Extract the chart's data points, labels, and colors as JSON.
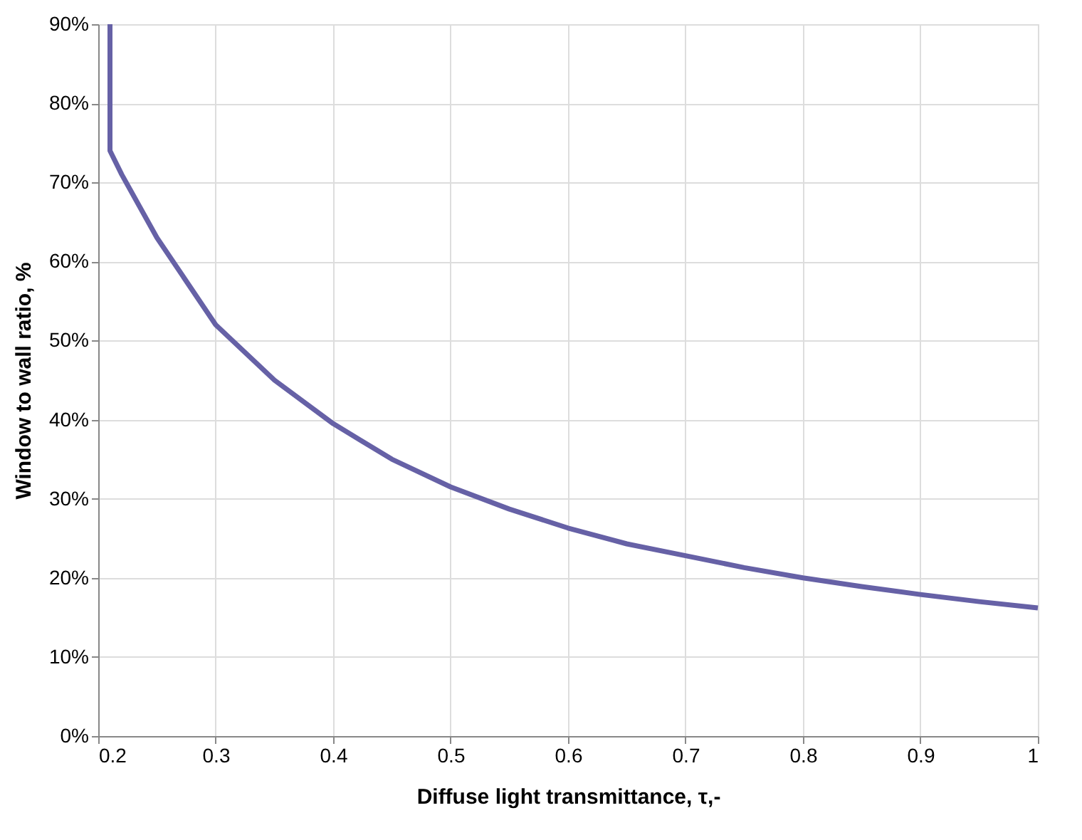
{
  "chart_data": {
    "type": "line",
    "xlabel": "Diffuse light transmittance, τ,-",
    "ylabel": "Window to wall ratio, %",
    "series": [
      {
        "color": "#6661a6",
        "x": [
          0.21,
          0.21,
          0.22,
          0.25,
          0.3,
          0.35,
          0.4,
          0.45,
          0.5,
          0.55,
          0.6,
          0.65,
          0.7,
          0.75,
          0.8,
          0.85,
          0.9,
          0.95,
          1.0
        ],
        "values": [
          90,
          74,
          71,
          63,
          52,
          45,
          39.5,
          35,
          31.5,
          28.7,
          26.3,
          24.3,
          22.8,
          21.3,
          20,
          18.9,
          17.9,
          17,
          16.2
        ]
      }
    ],
    "xlim": [
      0.2,
      1.0
    ],
    "xticks": [
      0.2,
      0.3,
      0.4,
      0.5,
      0.6,
      0.7,
      0.8,
      0.9,
      1
    ],
    "ylim": [
      0,
      90
    ],
    "yticks": [
      {
        "value": 0,
        "label": "0%"
      },
      {
        "value": 10,
        "label": "10%"
      },
      {
        "value": 20,
        "label": "20%"
      },
      {
        "value": 30,
        "label": "30%"
      },
      {
        "value": 40,
        "label": "40%"
      },
      {
        "value": 50,
        "label": "50%"
      },
      {
        "value": 60,
        "label": "60%"
      },
      {
        "value": 70,
        "label": "70%"
      },
      {
        "value": 80,
        "label": "80%"
      },
      {
        "value": 90,
        "label": "90%"
      }
    ],
    "grid": true,
    "marker": "none",
    "line_style": "solid"
  }
}
